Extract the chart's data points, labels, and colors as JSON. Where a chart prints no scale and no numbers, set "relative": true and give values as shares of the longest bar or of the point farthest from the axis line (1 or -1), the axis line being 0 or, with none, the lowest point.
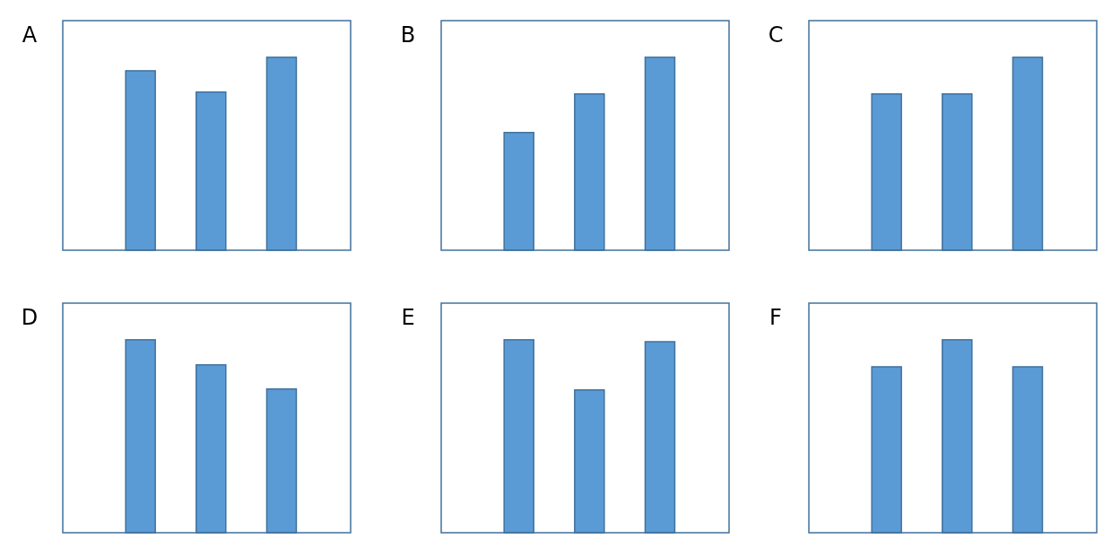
{
  "chart_data": [
    {
      "type": "bar",
      "title": "A",
      "relative": true,
      "categories": [
        null,
        null,
        null
      ],
      "color": "#5b9bd5",
      "values": [
        0.93,
        0.82,
        1
      ]
    },
    {
      "type": "bar",
      "title": "B",
      "relative": true,
      "categories": [
        null,
        null,
        null
      ],
      "color": "#5b9bd5",
      "values": [
        0.61,
        0.81,
        1
      ]
    },
    {
      "type": "bar",
      "title": "C",
      "relative": true,
      "categories": [
        null,
        null,
        null
      ],
      "color": "#5b9bd5",
      "values": [
        0.81,
        0.81,
        1
      ]
    },
    {
      "type": "bar",
      "title": "D",
      "relative": true,
      "categories": [
        null,
        null,
        null
      ],
      "color": "#5b9bd5",
      "values": [
        1,
        0.87,
        0.745
      ]
    },
    {
      "type": "bar",
      "title": "E",
      "relative": true,
      "categories": [
        null,
        null,
        null
      ],
      "color": "#5b9bd5",
      "values": [
        1,
        0.74,
        0.99
      ]
    },
    {
      "type": "bar",
      "title": "F",
      "relative": true,
      "categories": [
        null,
        null,
        null
      ],
      "color": "#5b9bd5",
      "values": [
        0.86,
        1,
        0.86
      ]
    }
  ]
}
